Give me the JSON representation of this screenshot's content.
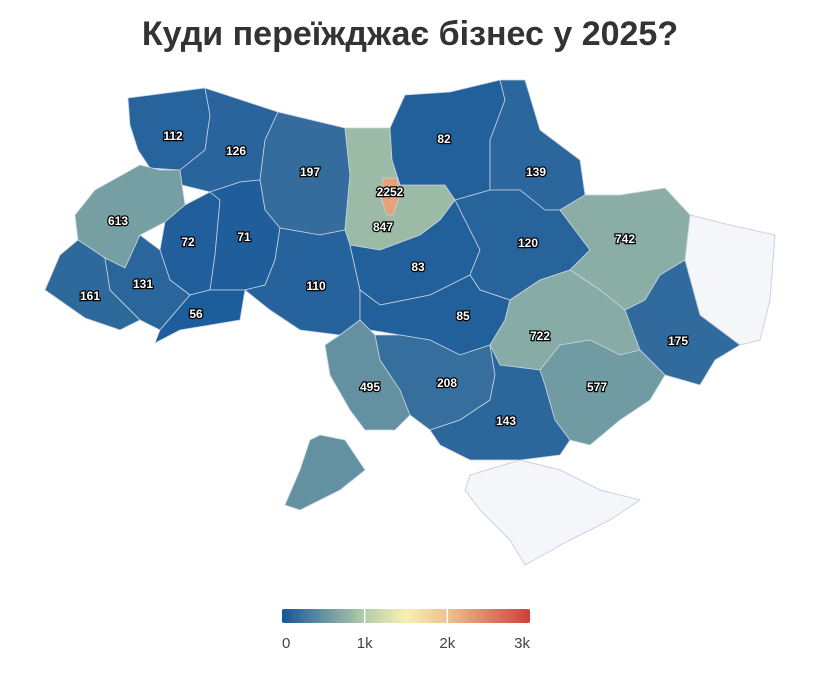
{
  "chart_data": {
    "type": "choropleth",
    "title": "Куди переїжджає бізнес у 2025?",
    "values": [
      112,
      126,
      197,
      2252,
      847,
      82,
      139,
      613,
      72,
      71,
      161,
      131,
      56,
      110,
      83,
      120,
      742,
      85,
      722,
      175,
      495,
      208,
      143,
      577,
      495
    ],
    "clim": [
      0,
      3000
    ],
    "colorscale": [
      {
        "value": 0,
        "color": "#15569a"
      },
      {
        "value": 1000,
        "color": "#b3cda9"
      },
      {
        "value": 1500,
        "color": "#f6f0b0"
      },
      {
        "value": 2000,
        "color": "#eec28e"
      },
      {
        "value": 3000,
        "color": "#d03e3c"
      }
    ],
    "ticks": [
      0,
      {
        "value": 1000,
        "label": "1k"
      },
      {
        "value": 2000,
        "label": "2k"
      },
      {
        "value": 3000,
        "label": "3k"
      }
    ]
  }
}
